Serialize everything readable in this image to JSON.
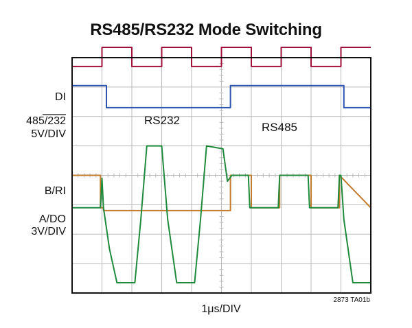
{
  "title": "RS485/RS232 Mode Switching",
  "x_label": "1μs/DIV",
  "part_note": "2873 TA01b",
  "channel_labels": {
    "di": "DI",
    "mode_prefix": "485/",
    "mode_overline": "232",
    "mode_scale": "5V/DIV",
    "b_ri": "B/RI",
    "a_do": "A/DO",
    "bottom_scale": "3V/DIV"
  },
  "annotations": {
    "rs232": "RS232",
    "rs485": "RS485"
  },
  "colors": {
    "di": "#a0103a",
    "mode": "#2b55b0",
    "b_ri": "#c27a2c",
    "a_do": "#1f8a3c",
    "grid": "#b8b8b8",
    "frame": "#111111"
  },
  "chart_data": {
    "type": "line",
    "title": "RS485/RS232 Mode Switching",
    "xlabel": "1μs/DIV",
    "grid": true,
    "x_divisions": 10,
    "y_divisions": 8,
    "x_unit": "div",
    "y_unit": "div",
    "xlim": [
      0,
      10
    ],
    "ylim": [
      0,
      8
    ],
    "series": [
      {
        "name": "DI",
        "x": [
          0,
          1,
          1,
          2,
          2,
          3,
          3,
          4,
          4,
          5,
          5,
          6,
          6,
          7,
          7,
          8,
          8,
          9,
          9,
          10
        ],
        "y": [
          7.7,
          7.7,
          8.35,
          8.35,
          7.7,
          7.7,
          8.35,
          8.35,
          7.7,
          7.7,
          8.35,
          8.35,
          7.7,
          7.7,
          8.35,
          8.35,
          7.7,
          7.7,
          8.35,
          8.35
        ]
      },
      {
        "name": "485/232",
        "x": [
          0,
          1.15,
          1.15,
          5.3,
          5.3,
          9.1,
          9.1,
          10
        ],
        "y": [
          7.05,
          7.05,
          6.3,
          6.3,
          7.05,
          7.05,
          6.3,
          6.3
        ]
      },
      {
        "name": "B/RI",
        "x": [
          0,
          0.95,
          0.95,
          1.05,
          1.05,
          5.3,
          5.3,
          6.0,
          6.0,
          6.95,
          6.95,
          8.0,
          8.0,
          8.95,
          8.95,
          10
        ],
        "y": [
          4.0,
          4.0,
          2.9,
          2.9,
          2.8,
          2.8,
          4.0,
          4.0,
          2.9,
          2.9,
          4.0,
          4.0,
          2.9,
          2.9,
          4.0,
          2.9
        ]
      },
      {
        "name": "A/DO",
        "x": [
          0,
          0.95,
          1.0,
          1.05,
          1.25,
          1.5,
          2.1,
          2.3,
          2.5,
          3.0,
          3.2,
          3.5,
          4.1,
          4.3,
          4.5,
          5.05,
          5.2,
          5.35,
          5.9,
          5.95,
          6.0,
          6.9,
          6.95,
          7.0,
          7.9,
          7.95,
          8.0,
          8.9,
          8.95,
          9.0,
          9.1,
          9.4,
          10
        ],
        "y": [
          2.9,
          2.9,
          3.9,
          2.9,
          1.5,
          0.35,
          0.35,
          2.5,
          5.0,
          5.0,
          2.5,
          0.35,
          0.35,
          2.5,
          5.0,
          4.9,
          3.8,
          4.0,
          4.0,
          2.9,
          2.9,
          2.9,
          4.0,
          4.0,
          4.0,
          2.9,
          2.9,
          2.9,
          4.0,
          4.0,
          2.5,
          0.35,
          0.35
        ]
      }
    ]
  }
}
